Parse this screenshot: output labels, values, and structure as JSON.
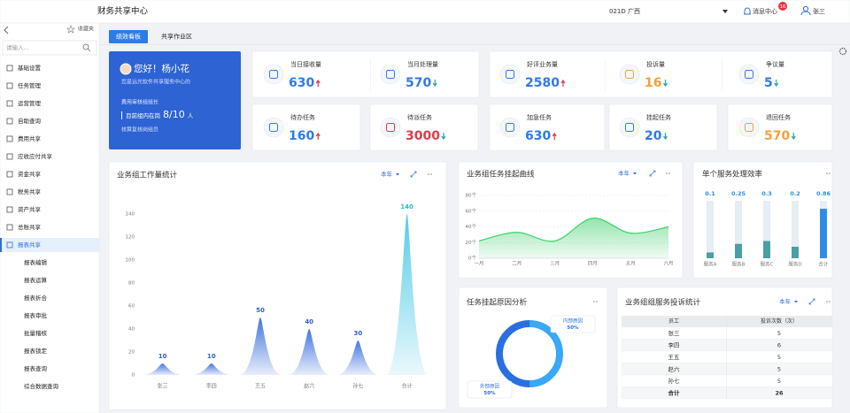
{
  "header": {
    "title": "财务共享中心",
    "org": "021D 广西",
    "messages": "消息中心",
    "badge": 16,
    "user": "张三"
  },
  "sidebar": {
    "favorites": "收藏夹",
    "search_placeholder": "请输入...",
    "menu": [
      "基础设置",
      "任务管理",
      "运营管理",
      "自助查询",
      "费用共享",
      "应收应付共享",
      "资金共享",
      "税务共享",
      "资产共享",
      "总账共享",
      "报表共享"
    ],
    "active": 10,
    "submenu": [
      "报表编辑",
      "报表运算",
      "报表折合",
      "报表审批",
      "批量稽核",
      "报表锁定",
      "报表查询",
      "综合数据查询"
    ]
  },
  "tabs": [
    "绩效看板",
    "共享作业区"
  ],
  "welcome": {
    "greeting": "您好！杨小花",
    "org": "您是远光软件共享服务中心的",
    "role": "费用审核组组长",
    "on_duty_label": "目前组内在岗",
    "on_duty": "8/10",
    "unit": "人",
    "post": "核算复核岗组员"
  },
  "stats": [
    {
      "label": "当日接收量",
      "value": 630,
      "trend": "up",
      "color": "#2d7be5"
    },
    {
      "label": "当月处理量",
      "value": 570,
      "trend": "down",
      "color": "#2d7be5"
    },
    {
      "label": "好评业务量",
      "value": 2580,
      "trend": "up",
      "color": "#2d7be5"
    },
    {
      "label": "投诉量",
      "value": 16,
      "trend": "down",
      "color": "#f5a03c"
    },
    {
      "label": "争议量",
      "value": 5,
      "trend": "down",
      "color": "#2d7be5"
    },
    {
      "label": "待办任务",
      "value": 160,
      "trend": "up",
      "color": "#2d7be5"
    },
    {
      "label": "待派任务",
      "value": 3000,
      "trend": "down",
      "color": "#e6394a"
    },
    {
      "label": "加急任务",
      "value": 630,
      "trend": "up",
      "color": "#2d7be5"
    },
    {
      "label": "挂起任务",
      "value": 20,
      "trend": "down",
      "color": "#2d7be5"
    },
    {
      "label": "退回任务",
      "value": 570,
      "trend": "down",
      "color": "#f5a03c"
    }
  ],
  "chart_data": [
    {
      "type": "peak",
      "title": "业务组工作量统计",
      "period": "本年",
      "categories": [
        "张三",
        "李四",
        "王五",
        "赵六",
        "孙七",
        "合计"
      ],
      "values": [
        10,
        10,
        50,
        40,
        30,
        140
      ],
      "colors": [
        "#3a6fdc",
        "#3a6fdc",
        "#3a6fdc",
        "#3a6fdc",
        "#3a6fdc",
        "#4cc9e6"
      ],
      "ylim": [
        0,
        140
      ],
      "yticks": [
        0,
        20,
        40,
        60,
        80,
        100,
        120,
        140
      ],
      "grid": false
    },
    {
      "type": "area",
      "title": "业务组任务挂起曲线",
      "period": "本年",
      "categories": [
        "一月",
        "二月",
        "三月",
        "四月",
        "五月",
        "六月"
      ],
      "values": [
        22,
        33,
        22,
        51,
        32,
        40
      ],
      "color": "#3ecf6a",
      "ylim": [
        0,
        80
      ],
      "yticks": [
        {
          "value": 0,
          "label": "0个"
        },
        {
          "value": 20,
          "label": "20个"
        },
        {
          "value": 40,
          "label": "40个"
        },
        {
          "value": 60,
          "label": "60个"
        },
        {
          "value": 80,
          "label": "80个"
        }
      ],
      "grid": true
    },
    {
      "type": "progress",
      "title": "单个服务处理效率",
      "categories": [
        "服务A",
        "服务B",
        "服务C",
        "服务D",
        "合计"
      ],
      "values": [
        0.1,
        0.25,
        0.3,
        0.2,
        0.86
      ],
      "colors": [
        "#4a9ea6",
        "#4a9ea6",
        "#4a9ea6",
        "#4a9ea6",
        "#2e8ce6"
      ],
      "ylim": [
        0,
        1
      ]
    },
    {
      "type": "donut",
      "title": "任务挂起原因分析",
      "categories": [
        "内部原因",
        "外部原因"
      ],
      "values": [
        50,
        50
      ],
      "value_labels": [
        "50%",
        "50%"
      ],
      "colors": [
        "#38a8f7",
        "#2a6fe0"
      ]
    }
  ],
  "table": {
    "title": "业务组组服务投诉统计",
    "period": "本年",
    "columns": [
      "员工",
      "投诉次数（次）"
    ],
    "rows": [
      [
        "张三",
        5
      ],
      [
        "李四",
        6
      ],
      [
        "王五",
        5
      ],
      [
        "赵六",
        5
      ],
      [
        "孙七",
        5
      ],
      [
        "合计",
        26
      ]
    ]
  }
}
